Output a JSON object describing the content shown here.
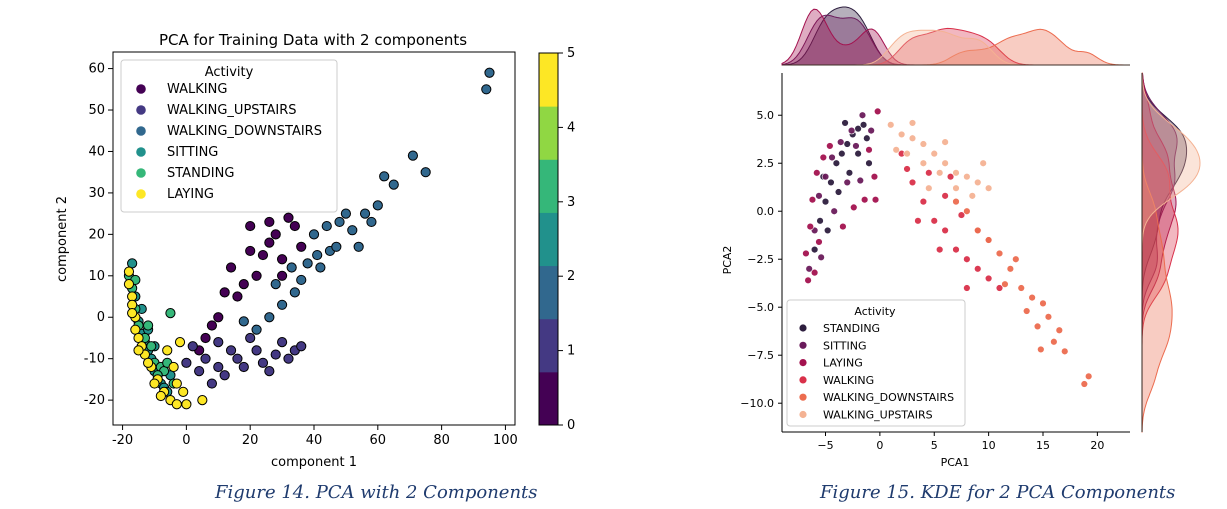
{
  "figures": [
    {
      "caption": "Figure 14. PCA with 2 Components"
    },
    {
      "caption": "Figure 15. KDE for 2 PCA Components"
    }
  ],
  "chart_data": [
    {
      "type": "scatter",
      "title": "PCA for Training Data with 2 components",
      "xlabel": "component 1",
      "ylabel": "component 2",
      "xlim": [
        -23,
        103
      ],
      "ylim": [
        -26,
        64
      ],
      "xticks": [
        -20,
        0,
        20,
        40,
        60,
        80,
        100
      ],
      "yticks": [
        -20,
        -10,
        0,
        10,
        20,
        30,
        40,
        50,
        60
      ],
      "legend": {
        "title": "Activity",
        "placement": "top-left"
      },
      "colorbar": {
        "ticks": [
          0,
          1,
          2,
          3,
          4,
          5
        ],
        "colormap": "viridis",
        "colors": [
          "#440154",
          "#443983",
          "#31688e",
          "#21918c",
          "#35b779",
          "#90d743",
          "#fde725"
        ]
      },
      "series": [
        {
          "name": "WALKING",
          "color": "#440154",
          "points": [
            [
              14,
              12
            ],
            [
              20,
              22
            ],
            [
              26,
              18
            ],
            [
              30,
              14
            ],
            [
              22,
              10
            ],
            [
              16,
              5
            ],
            [
              10,
              0
            ],
            [
              18,
              8
            ],
            [
              24,
              15
            ],
            [
              28,
              20
            ],
            [
              32,
              24
            ],
            [
              34,
              22
            ],
            [
              8,
              -2
            ],
            [
              12,
              6
            ],
            [
              20,
              16
            ],
            [
              26,
              23
            ],
            [
              36,
              17
            ],
            [
              30,
              10
            ],
            [
              6,
              -5
            ],
            [
              4,
              -8
            ]
          ]
        },
        {
          "name": "WALKING_UPSTAIRS",
          "color": "#443983",
          "points": [
            [
              2,
              -7
            ],
            [
              6,
              -10
            ],
            [
              10,
              -12
            ],
            [
              16,
              -10
            ],
            [
              22,
              -8
            ],
            [
              28,
              -9
            ],
            [
              30,
              -6
            ],
            [
              34,
              -8
            ],
            [
              12,
              -14
            ],
            [
              4,
              -13
            ],
            [
              18,
              -12
            ],
            [
              24,
              -11
            ],
            [
              26,
              -13
            ],
            [
              8,
              -16
            ],
            [
              14,
              -8
            ],
            [
              20,
              -5
            ],
            [
              36,
              -7
            ],
            [
              0,
              -11
            ],
            [
              10,
              -6
            ],
            [
              32,
              -10
            ]
          ]
        },
        {
          "name": "WALKING_DOWNSTAIRS",
          "color": "#31688e",
          "points": [
            [
              95,
              59
            ],
            [
              94,
              55
            ],
            [
              75,
              35
            ],
            [
              71,
              39
            ],
            [
              65,
              32
            ],
            [
              62,
              34
            ],
            [
              60,
              27
            ],
            [
              56,
              25
            ],
            [
              52,
              21
            ],
            [
              50,
              25
            ],
            [
              48,
              23
            ],
            [
              45,
              16
            ],
            [
              42,
              12
            ],
            [
              40,
              20
            ],
            [
              38,
              13
            ],
            [
              36,
              9
            ],
            [
              34,
              6
            ],
            [
              30,
              3
            ],
            [
              26,
              0
            ],
            [
              22,
              -3
            ],
            [
              18,
              -1
            ],
            [
              28,
              8
            ],
            [
              44,
              22
            ],
            [
              54,
              17
            ],
            [
              58,
              23
            ],
            [
              41,
              15
            ],
            [
              33,
              12
            ],
            [
              47,
              17
            ]
          ]
        },
        {
          "name": "SITTING",
          "color": "#21918c",
          "points": [
            [
              -17,
              13
            ],
            [
              -16,
              5
            ],
            [
              -15,
              -1
            ],
            [
              -14,
              -4
            ],
            [
              -13,
              -6
            ],
            [
              -12,
              -8
            ],
            [
              -11,
              -10
            ],
            [
              -10,
              -13
            ],
            [
              -9,
              -15
            ],
            [
              -8,
              -16
            ],
            [
              -7,
              -17
            ],
            [
              -6,
              -18
            ],
            [
              -5,
              -14
            ],
            [
              -14,
              2
            ],
            [
              -12,
              -3
            ],
            [
              -10,
              -7
            ]
          ]
        },
        {
          "name": "STANDING",
          "color": "#35b779",
          "points": [
            [
              -18,
              10
            ],
            [
              -17,
              7
            ],
            [
              -16,
              2
            ],
            [
              -15,
              -2
            ],
            [
              -13,
              -5
            ],
            [
              -11,
              -7
            ],
            [
              -10,
              -11
            ],
            [
              -8,
              -12
            ],
            [
              -7,
              -13
            ],
            [
              -6,
              -11
            ],
            [
              -5,
              1
            ],
            [
              -16,
              9
            ],
            [
              -9,
              -14
            ],
            [
              -12,
              -2
            ],
            [
              -4,
              -16
            ]
          ]
        },
        {
          "name": "LAYING",
          "color": "#fde725",
          "points": [
            [
              -18,
              11
            ],
            [
              -18,
              8
            ],
            [
              -17,
              5
            ],
            [
              -17,
              3
            ],
            [
              -16,
              0
            ],
            [
              -16,
              -3
            ],
            [
              -15,
              -5
            ],
            [
              -14,
              -7
            ],
            [
              -13,
              -9
            ],
            [
              -11,
              -12
            ],
            [
              -9,
              -15
            ],
            [
              -7,
              -18
            ],
            [
              -5,
              -20
            ],
            [
              -3,
              -21
            ],
            [
              0,
              -21
            ],
            [
              5,
              -20
            ],
            [
              -1,
              -18
            ],
            [
              -4,
              -12
            ],
            [
              -2,
              -6
            ],
            [
              -6,
              -8
            ],
            [
              -17,
              1
            ],
            [
              -15,
              -8
            ],
            [
              -12,
              -11
            ],
            [
              -10,
              -16
            ],
            [
              -8,
              -19
            ],
            [
              -3,
              -16
            ]
          ]
        }
      ]
    },
    {
      "type": "scatter",
      "title": "",
      "xlabel": "PCA1",
      "ylabel": "PCA2",
      "xlim": [
        -9,
        23
      ],
      "ylim": [
        -11.5,
        7.2
      ],
      "xticks": [
        -5,
        0,
        5,
        10,
        15,
        20
      ],
      "yticks": [
        -10.0,
        -7.5,
        -5.0,
        -2.5,
        0.0,
        2.5,
        5.0
      ],
      "xtick_labels": [
        "−5",
        "0",
        "5",
        "10",
        "15",
        "20"
      ],
      "ytick_labels": [
        "−10.0",
        "−7.5",
        "−5.0",
        "−2.5",
        "0.0",
        "2.5",
        "5.0"
      ],
      "legend": {
        "title": "Activity",
        "placement": "lower-left"
      },
      "marginal": "kde",
      "series": [
        {
          "name": "STANDING",
          "color": "#2d1e3e",
          "points": [
            [
              -6,
              -2
            ],
            [
              -5.5,
              -0.5
            ],
            [
              -5,
              0.5
            ],
            [
              -4.5,
              1.5
            ],
            [
              -4,
              2.5
            ],
            [
              -3.5,
              3
            ],
            [
              -3,
              3.5
            ],
            [
              -2.5,
              4
            ],
            [
              -2,
              4.3
            ],
            [
              -1.5,
              4.5
            ],
            [
              -4.8,
              -1
            ],
            [
              -3.8,
              1
            ],
            [
              -2.8,
              2
            ],
            [
              -2,
              3
            ],
            [
              -1.2,
              3.8
            ],
            [
              -5.2,
              1.8
            ],
            [
              -3.2,
              4.6
            ],
            [
              -1,
              2.5
            ]
          ]
        },
        {
          "name": "SITTING",
          "color": "#6a1b5b",
          "points": [
            [
              -6.5,
              -3
            ],
            [
              -6,
              -1
            ],
            [
              -5.6,
              0.8
            ],
            [
              -5,
              1.8
            ],
            [
              -4.4,
              2.8
            ],
            [
              -3.6,
              3.6
            ],
            [
              -2.6,
              4.2
            ],
            [
              -1.6,
              5
            ],
            [
              -0.8,
              4.2
            ],
            [
              -4.2,
              0
            ],
            [
              -3,
              1.5
            ],
            [
              -2.2,
              3.4
            ],
            [
              -1.8,
              1.6
            ],
            [
              -5.4,
              -2.4
            ]
          ]
        },
        {
          "name": "LAYING",
          "color": "#a3124f",
          "points": [
            [
              -6.6,
              -3.6
            ],
            [
              -6.8,
              -2.2
            ],
            [
              -6.4,
              -0.8
            ],
            [
              -6.2,
              0.6
            ],
            [
              -5.8,
              2
            ],
            [
              -5.2,
              2.8
            ],
            [
              -4.6,
              3.4
            ],
            [
              -6,
              -3.2
            ],
            [
              -5.6,
              -1.6
            ],
            [
              -0.2,
              5.2
            ],
            [
              -1,
              3.2
            ],
            [
              -0.5,
              1.8
            ],
            [
              -3.4,
              -0.8
            ],
            [
              -2.4,
              0.2
            ],
            [
              -1.4,
              0.6
            ],
            [
              -0.4,
              0.6
            ]
          ]
        },
        {
          "name": "WALKING",
          "color": "#d9304a",
          "points": [
            [
              2,
              3
            ],
            [
              3,
              1.5
            ],
            [
              4,
              0.5
            ],
            [
              5,
              -0.5
            ],
            [
              6,
              -1
            ],
            [
              7,
              -2
            ],
            [
              8,
              -2.5
            ],
            [
              9,
              -3
            ],
            [
              10,
              -3.5
            ],
            [
              11,
              -4
            ],
            [
              4.5,
              2
            ],
            [
              6,
              0.8
            ],
            [
              7.5,
              -0.2
            ],
            [
              9,
              -1
            ],
            [
              3.5,
              -0.5
            ],
            [
              5.5,
              -2
            ],
            [
              8,
              -4
            ],
            [
              2.5,
              2.2
            ],
            [
              6.5,
              1.8
            ],
            [
              10,
              -1.5
            ]
          ]
        },
        {
          "name": "WALKING_DOWNSTAIRS",
          "color": "#ec6c4f",
          "points": [
            [
              19.2,
              -8.6
            ],
            [
              18.8,
              -9
            ],
            [
              17,
              -7.3
            ],
            [
              16,
              -6.8
            ],
            [
              15.5,
              -5.5
            ],
            [
              14.5,
              -6
            ],
            [
              14,
              -4.5
            ],
            [
              13,
              -4
            ],
            [
              12,
              -3
            ],
            [
              11,
              -2.2
            ],
            [
              10,
              -1.5
            ],
            [
              9,
              -1
            ],
            [
              8,
              0
            ],
            [
              7,
              0.5
            ],
            [
              15,
              -4.8
            ],
            [
              16.5,
              -6.2
            ],
            [
              13.5,
              -5.2
            ],
            [
              12.5,
              -2.5
            ],
            [
              11.5,
              -3.8
            ],
            [
              14.8,
              -7.2
            ]
          ]
        },
        {
          "name": "WALKING_UPSTAIRS",
          "color": "#f4b293",
          "points": [
            [
              1,
              4.5
            ],
            [
              2,
              4
            ],
            [
              3,
              3.8
            ],
            [
              4,
              3.5
            ],
            [
              5,
              3
            ],
            [
              6,
              2.5
            ],
            [
              7,
              2
            ],
            [
              8,
              1.8
            ],
            [
              9,
              1.5
            ],
            [
              10,
              1.2
            ],
            [
              2.5,
              3
            ],
            [
              4,
              2.5
            ],
            [
              5.5,
              2
            ],
            [
              7,
              1.2
            ],
            [
              8.5,
              0.8
            ],
            [
              3,
              4.6
            ],
            [
              6,
              3.6
            ],
            [
              9.5,
              2.5
            ],
            [
              1.5,
              3.2
            ],
            [
              4.5,
              1.2
            ]
          ]
        }
      ]
    }
  ]
}
